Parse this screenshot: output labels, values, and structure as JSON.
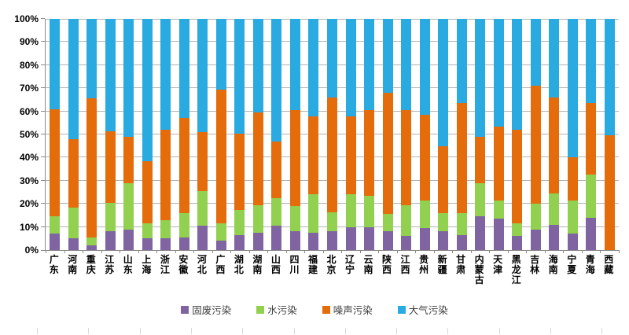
{
  "chart_data": {
    "type": "bar",
    "subtype": "stacked-100-percent",
    "title": "",
    "xlabel": "",
    "ylabel": "",
    "grid": true,
    "background_color": "#FFFFFF",
    "gridline_color": "#B3B3B3",
    "axis_color": "#898989",
    "y_axis": {
      "min": 0,
      "max": 100,
      "step": 10,
      "tick_labels": [
        "0%",
        "10%",
        "20%",
        "30%",
        "40%",
        "50%",
        "60%",
        "70%",
        "80%",
        "90%",
        "100%"
      ]
    },
    "categories": [
      "广东",
      "河南",
      "重庆",
      "江苏",
      "山东",
      "上海",
      "浙江",
      "安徽",
      "河北",
      "广西",
      "湖北",
      "湖南",
      "山西",
      "四川",
      "福建",
      "北京",
      "辽宁",
      "云南",
      "陕西",
      "江西",
      "贵州",
      "新疆",
      "甘肃",
      "内蒙古",
      "天津",
      "黑龙江",
      "吉林",
      "海南",
      "宁夏",
      "青海",
      "西藏"
    ],
    "series": [
      {
        "name": "固废污染",
        "color": "#8064A2",
        "values": [
          7,
          5,
          2,
          8,
          9,
          5,
          5,
          5.5,
          10.5,
          4,
          6.5,
          7.5,
          10.5,
          8,
          7.5,
          8,
          10,
          10,
          8,
          6,
          9.5,
          8,
          6.5,
          14.5,
          13.5,
          6,
          9,
          11,
          7,
          14,
          0
        ]
      },
      {
        "name": "水污染",
        "color": "#92D050",
        "values": [
          7.5,
          13.5,
          3.5,
          12.5,
          20,
          6.5,
          8,
          10.5,
          15,
          7.5,
          11,
          12,
          12,
          11,
          16.5,
          8.5,
          14,
          13.5,
          7.5,
          13.5,
          12,
          8,
          9.5,
          14.5,
          8,
          5.5,
          11,
          13.5,
          14.5,
          18.5,
          0
        ]
      },
      {
        "name": "噪声污染",
        "color": "#E46C0A",
        "values": [
          46.5,
          29.5,
          60,
          31,
          20,
          27,
          39,
          41,
          25.5,
          58,
          33,
          40,
          24.5,
          41.5,
          34,
          49.5,
          34,
          37,
          52.5,
          41,
          37,
          29,
          47.5,
          20,
          32,
          40.5,
          51,
          41.5,
          18.5,
          31,
          49.5
        ]
      },
      {
        "name": "大气污染",
        "color": "#29ABE2",
        "values": [
          39,
          52,
          34.5,
          48.5,
          51,
          61.5,
          48,
          43,
          49,
          30.5,
          49.5,
          40.5,
          53,
          39.5,
          42,
          34,
          42,
          39.5,
          32,
          39.5,
          41.5,
          55,
          36.5,
          51,
          46.5,
          48,
          29,
          34,
          60,
          36.5,
          50.5
        ]
      }
    ],
    "legend": {
      "position": "bottom",
      "items": [
        "固废污染",
        "水污染",
        "噪声污染",
        "大气污染"
      ]
    }
  }
}
